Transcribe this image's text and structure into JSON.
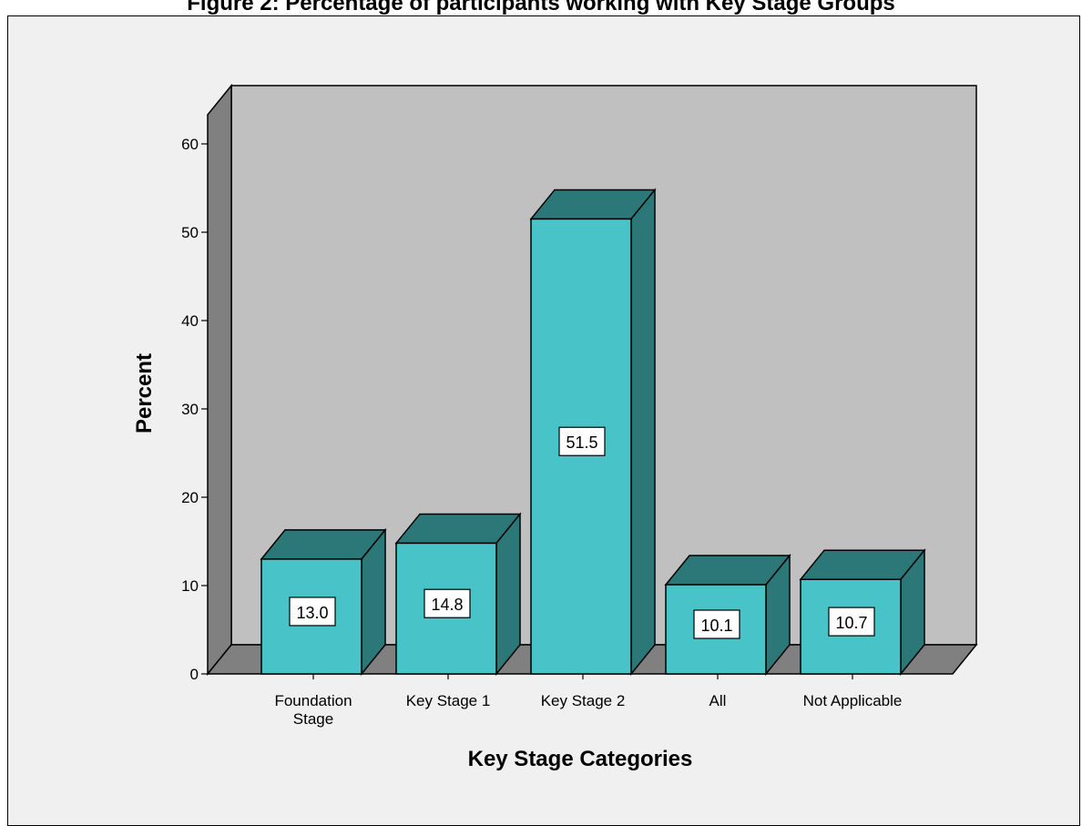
{
  "chart_data": {
    "type": "bar",
    "title": "Figure 2: Percentage of participants working with Key Stage Groups",
    "xlabel": "Key Stage Categories",
    "ylabel": "Percent",
    "categories": [
      [
        "Foundation",
        "Stage"
      ],
      [
        "Key Stage 1"
      ],
      [
        "Key Stage 2"
      ],
      [
        "All"
      ],
      [
        "Not Applicable"
      ]
    ],
    "values": [
      13.0,
      14.8,
      51.5,
      10.1,
      10.7
    ],
    "value_labels": [
      "13.0",
      "14.8",
      "51.5",
      "10.1",
      "10.7"
    ],
    "ylim": [
      0,
      60
    ],
    "yticks": [
      0,
      10,
      20,
      30,
      40,
      50,
      60
    ],
    "grid": false,
    "style": "3d",
    "colors": {
      "bar_front": "#48c3c8",
      "bar_dark": "#2c7878",
      "wall": "#c0c0c0",
      "wall_side": "#808080",
      "background": "#f0f0f0"
    }
  }
}
